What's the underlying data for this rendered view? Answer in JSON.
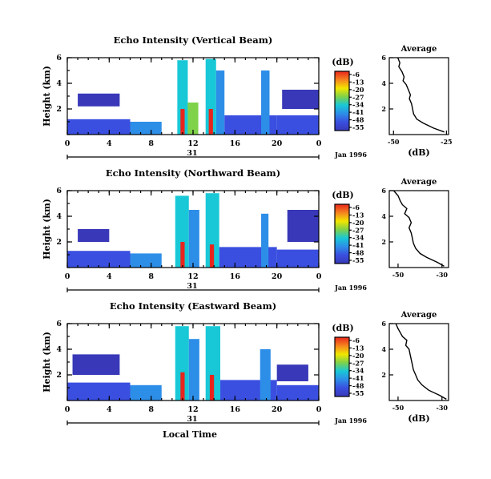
{
  "chart_data": [
    {
      "type": "heatmap",
      "title": "Echo Intensity (Vertical Beam)",
      "ylabel": "Height (km)",
      "ylim": [
        0,
        6
      ],
      "yticks": [
        "2",
        "4",
        "6"
      ],
      "xlim": [
        0,
        24
      ],
      "xticks": [
        "0",
        "4",
        "8",
        "12",
        "16",
        "20",
        "0"
      ],
      "date_label": "31",
      "date_suffix": "Jan 1996",
      "colorbar": {
        "unit": "(dB)",
        "ticks": [
          "-6",
          "-13",
          "-20",
          "-27",
          "-34",
          "-41",
          "-48",
          "-55"
        ],
        "range": [
          -55,
          -6
        ]
      },
      "cells": [
        {
          "t0": 0,
          "t1": 6,
          "h0": 0,
          "h1": 1.2,
          "level": "-48"
        },
        {
          "t0": 6,
          "t1": 9,
          "h0": 0,
          "h1": 1.0,
          "level": "-41"
        },
        {
          "t0": 10.5,
          "t1": 11.5,
          "h0": 0,
          "h1": 5.8,
          "level": "-34"
        },
        {
          "t0": 11.5,
          "t1": 12.5,
          "h0": 0,
          "h1": 2.5,
          "level": "-27"
        },
        {
          "t0": 13.2,
          "t1": 14.2,
          "h0": 0,
          "h1": 5.9,
          "level": "-34"
        },
        {
          "t0": 14.2,
          "t1": 15.0,
          "h0": 0,
          "h1": 5.0,
          "level": "-41"
        },
        {
          "t0": 15.0,
          "t1": 20.0,
          "h0": 0,
          "h1": 1.5,
          "level": "-48"
        },
        {
          "t0": 18.5,
          "t1": 19.3,
          "h0": 0,
          "h1": 5.0,
          "level": "-41"
        },
        {
          "t0": 20,
          "t1": 24,
          "h0": 0,
          "h1": 1.5,
          "level": "-48"
        },
        {
          "t0": 1,
          "t1": 5,
          "h0": 2.2,
          "h1": 3.2,
          "level": "-55"
        },
        {
          "t0": 20.5,
          "t1": 24,
          "h0": 2,
          "h1": 3.5,
          "level": "-55"
        },
        {
          "t0": 10.8,
          "t1": 11.2,
          "h0": 0,
          "h1": 2.0,
          "level": "-6"
        },
        {
          "t0": 13.5,
          "t1": 13.9,
          "h0": 0,
          "h1": 2.0,
          "level": "-6"
        }
      ],
      "average_profile": {
        "title": "Average",
        "xlabel": "(dB)",
        "xticks": [
          "-50",
          "-25"
        ],
        "xlim": [
          -52,
          -24
        ],
        "ylim": [
          0,
          6
        ],
        "yticks": [
          "2",
          "4",
          "6"
        ],
        "points": [
          [
            -48,
            6.0
          ],
          [
            -47,
            5.6
          ],
          [
            -47.5,
            5.3
          ],
          [
            -46,
            4.9
          ],
          [
            -45,
            4.5
          ],
          [
            -45.5,
            4.2
          ],
          [
            -44,
            3.9
          ],
          [
            -43,
            3.5
          ],
          [
            -42,
            3.1
          ],
          [
            -42.5,
            2.8
          ],
          [
            -41.5,
            2.4
          ],
          [
            -41,
            2.0
          ],
          [
            -40.5,
            1.6
          ],
          [
            -39,
            1.2
          ],
          [
            -36,
            0.9
          ],
          [
            -31,
            0.5
          ],
          [
            -26,
            0.2
          ]
        ]
      }
    },
    {
      "type": "heatmap",
      "title": "Echo Intensity (Northward Beam)",
      "ylabel": "Height (km)",
      "ylim": [
        0,
        6
      ],
      "yticks": [
        "2",
        "4",
        "6"
      ],
      "xlim": [
        0,
        24
      ],
      "xticks": [
        "0",
        "4",
        "8",
        "12",
        "16",
        "20",
        "0"
      ],
      "date_label": "31",
      "date_suffix": "Jan 1996",
      "colorbar": {
        "unit": "(dB)",
        "ticks": [
          "-6",
          "-13",
          "-20",
          "-27",
          "-34",
          "-41",
          "-48",
          "-55"
        ],
        "range": [
          -55,
          -6
        ]
      },
      "cells": [
        {
          "t0": 0,
          "t1": 6,
          "h0": 0,
          "h1": 1.3,
          "level": "-48"
        },
        {
          "t0": 6,
          "t1": 9,
          "h0": 0,
          "h1": 1.1,
          "level": "-41"
        },
        {
          "t0": 10.3,
          "t1": 11.6,
          "h0": 0,
          "h1": 5.6,
          "level": "-34"
        },
        {
          "t0": 11.6,
          "t1": 12.6,
          "h0": 0,
          "h1": 4.5,
          "level": "-41"
        },
        {
          "t0": 13.2,
          "t1": 14.5,
          "h0": 0,
          "h1": 5.8,
          "level": "-34"
        },
        {
          "t0": 14.5,
          "t1": 20,
          "h0": 0,
          "h1": 1.6,
          "level": "-48"
        },
        {
          "t0": 18.5,
          "t1": 19.2,
          "h0": 0,
          "h1": 4.2,
          "level": "-41"
        },
        {
          "t0": 20,
          "t1": 24,
          "h0": 0,
          "h1": 1.4,
          "level": "-48"
        },
        {
          "t0": 1,
          "t1": 4,
          "h0": 2.0,
          "h1": 3.0,
          "level": "-55"
        },
        {
          "t0": 21,
          "t1": 24,
          "h0": 2,
          "h1": 4.5,
          "level": "-55"
        },
        {
          "t0": 10.8,
          "t1": 11.2,
          "h0": 0,
          "h1": 2.0,
          "level": "-6"
        },
        {
          "t0": 13.6,
          "t1": 14.0,
          "h0": 0,
          "h1": 1.8,
          "level": "-6"
        }
      ],
      "average_profile": {
        "title": "Average",
        "xlabel": "",
        "xticks": [
          "-50",
          "-30"
        ],
        "xlim": [
          -54,
          -27
        ],
        "ylim": [
          0,
          6
        ],
        "yticks": [
          "2",
          "4",
          "6"
        ],
        "points": [
          [
            -52,
            6.0
          ],
          [
            -50,
            5.6
          ],
          [
            -49,
            5.2
          ],
          [
            -48,
            4.9
          ],
          [
            -46,
            4.6
          ],
          [
            -47,
            4.2
          ],
          [
            -45,
            3.9
          ],
          [
            -44,
            3.5
          ],
          [
            -45,
            3.1
          ],
          [
            -44,
            2.7
          ],
          [
            -43.5,
            2.3
          ],
          [
            -43,
            1.9
          ],
          [
            -42,
            1.5
          ],
          [
            -40,
            1.1
          ],
          [
            -37,
            0.8
          ],
          [
            -32,
            0.4
          ],
          [
            -29,
            0.1
          ]
        ]
      }
    },
    {
      "type": "heatmap",
      "title": "Echo Intensity (Eastward Beam)",
      "ylabel": "Height (km)",
      "ylim": [
        0,
        6
      ],
      "yticks": [
        "2",
        "4",
        "6"
      ],
      "xlim": [
        0,
        24
      ],
      "xticks": [
        "0",
        "4",
        "8",
        "12",
        "16",
        "20",
        "0"
      ],
      "date_label": "31",
      "date_suffix": "Jan 1996",
      "xlabel": "Local Time",
      "colorbar": {
        "unit": "(dB)",
        "ticks": [
          "-6",
          "-13",
          "-20",
          "-27",
          "-34",
          "-41",
          "-48",
          "-55"
        ],
        "range": [
          -55,
          -6
        ]
      },
      "cells": [
        {
          "t0": 0,
          "t1": 6,
          "h0": 0,
          "h1": 1.4,
          "level": "-48"
        },
        {
          "t0": 6,
          "t1": 9,
          "h0": 0,
          "h1": 1.2,
          "level": "-41"
        },
        {
          "t0": 10.3,
          "t1": 11.6,
          "h0": 0,
          "h1": 5.8,
          "level": "-34"
        },
        {
          "t0": 11.6,
          "t1": 12.6,
          "h0": 0,
          "h1": 4.8,
          "level": "-41"
        },
        {
          "t0": 13.2,
          "t1": 14.6,
          "h0": 0,
          "h1": 5.8,
          "level": "-34"
        },
        {
          "t0": 14.6,
          "t1": 20,
          "h0": 0,
          "h1": 1.6,
          "level": "-48"
        },
        {
          "t0": 18.4,
          "t1": 19.4,
          "h0": 0,
          "h1": 4.0,
          "level": "-41"
        },
        {
          "t0": 20,
          "t1": 24,
          "h0": 0,
          "h1": 1.2,
          "level": "-48"
        },
        {
          "t0": 0.5,
          "t1": 5,
          "h0": 2.0,
          "h1": 3.6,
          "level": "-55"
        },
        {
          "t0": 20,
          "t1": 23,
          "h0": 1.5,
          "h1": 2.8,
          "level": "-55"
        },
        {
          "t0": 10.8,
          "t1": 11.2,
          "h0": 0,
          "h1": 2.2,
          "level": "-6"
        },
        {
          "t0": 13.6,
          "t1": 14.0,
          "h0": 0,
          "h1": 2.0,
          "level": "-6"
        }
      ],
      "average_profile": {
        "title": "Average",
        "xlabel": "(dB)",
        "xticks": [
          "-50",
          "-30"
        ],
        "xlim": [
          -54,
          -27
        ],
        "ylim": [
          0,
          6
        ],
        "yticks": [
          "2",
          "4",
          "6"
        ],
        "points": [
          [
            -51,
            6.0
          ],
          [
            -50,
            5.6
          ],
          [
            -49,
            5.3
          ],
          [
            -48,
            5.0
          ],
          [
            -46,
            4.7
          ],
          [
            -46.5,
            4.3
          ],
          [
            -45,
            4.0
          ],
          [
            -44.5,
            3.6
          ],
          [
            -44,
            3.2
          ],
          [
            -43.5,
            2.8
          ],
          [
            -43,
            2.4
          ],
          [
            -42,
            2.0
          ],
          [
            -41,
            1.6
          ],
          [
            -39,
            1.2
          ],
          [
            -36,
            0.8
          ],
          [
            -31,
            0.4
          ],
          [
            -28,
            0.1
          ]
        ]
      }
    }
  ],
  "colors": {
    "-6": "#e8251c",
    "-13": "#f5841f",
    "-20": "#f2e600",
    "-27": "#7fd24a",
    "-34": "#19c8d6",
    "-41": "#2d8ee8",
    "-48": "#3a4fe0",
    "-55": "#3838b8"
  }
}
